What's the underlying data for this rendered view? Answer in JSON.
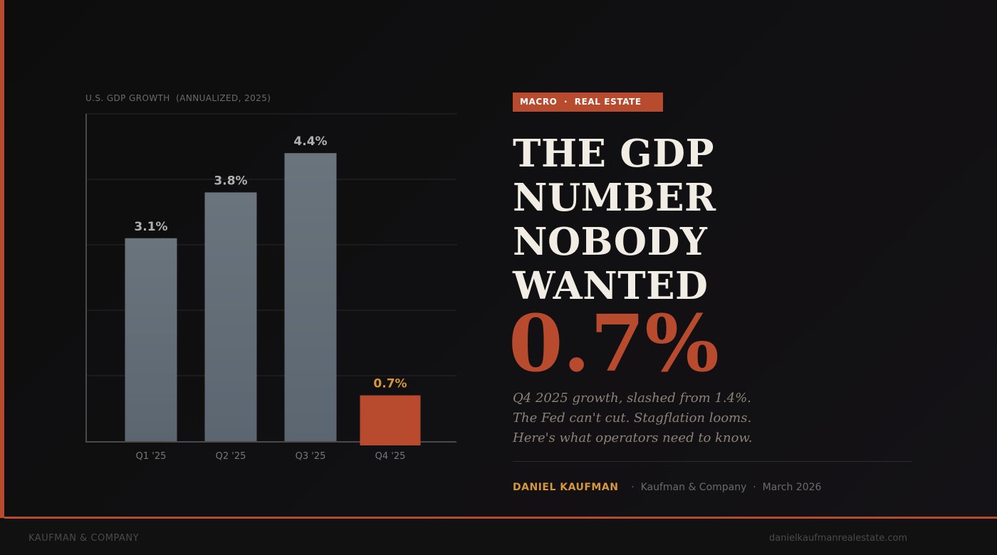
{
  "chart_data": {
    "type": "bar",
    "title": "U.S. GDP GROWTH  (ANNUALIZED, 2025)",
    "categories": [
      "Q1 '25",
      "Q2 '25",
      "Q3 '25",
      "Q4 '25"
    ],
    "values": [
      3.1,
      3.8,
      4.4,
      0.7
    ],
    "value_labels": [
      "3.1%",
      "3.8%",
      "4.4%",
      "0.7%"
    ],
    "ylim": [
      0,
      5
    ],
    "gridlines": [
      0,
      1,
      2,
      3,
      4,
      5
    ],
    "grid": true,
    "highlight_index": 3,
    "xlabel": "",
    "ylabel": ""
  },
  "colors": {
    "accent": "#b84a2e",
    "bar_gradient": [
      "#5c6670",
      "#6a747d"
    ],
    "label_default": "#b0b0b0",
    "label_highlight": "#d4973a",
    "author": "#d4973a"
  },
  "tag": "MACRO  ·  REAL ESTATE",
  "headline": [
    "THE GDP",
    "NUMBER",
    "NOBODY",
    "WANTED"
  ],
  "big_number": "0.7%",
  "subtext": [
    "Q4 2025 growth, slashed from 1.4%.",
    "The Fed can't cut. Stagflation looms.",
    "Here's what operators need to know."
  ],
  "byline": {
    "author": "DANIEL KAUFMAN",
    "company_text": "·  Kaufman & Company  ·  March 2026"
  },
  "footer": {
    "left": "KAUFMAN & COMPANY",
    "right": "danielkaufmanrealestate.com"
  }
}
